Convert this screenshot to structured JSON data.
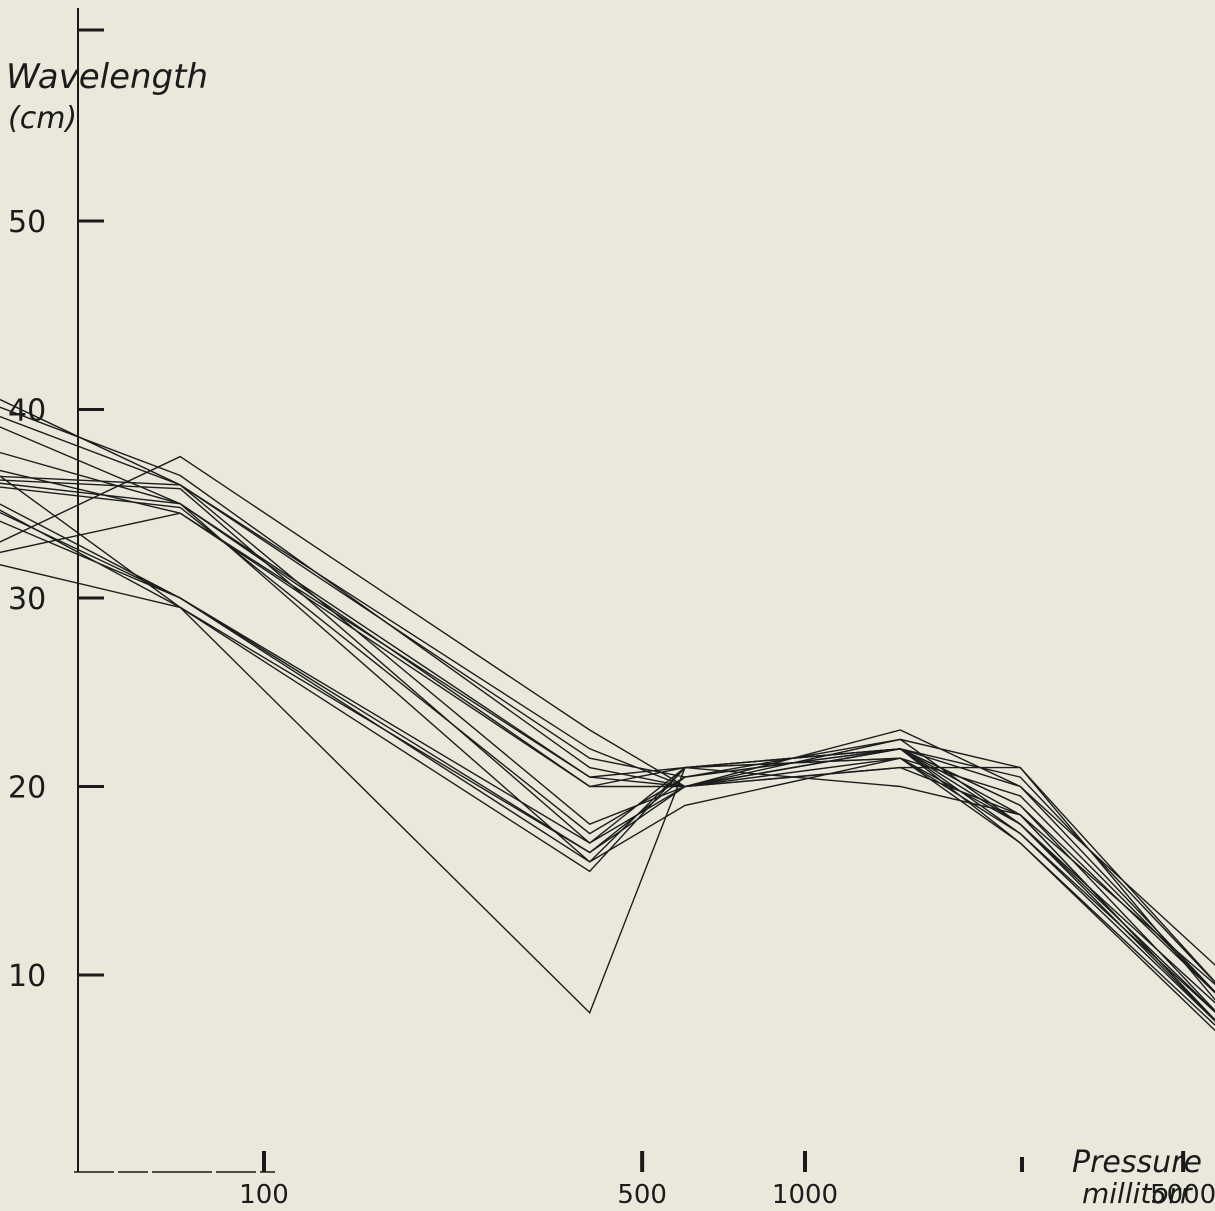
{
  "chart_data": {
    "type": "line",
    "title": "",
    "ylabel_line1": "Wavelength",
    "ylabel_line2": "(cm)",
    "xlabel_line1": "Pressure",
    "xlabel_line2": "millitorr",
    "x_scale": "log",
    "ylim": [
      0,
      60
    ],
    "y_ticks": [
      10,
      20,
      30,
      40,
      50
    ],
    "x_tick_labels": [
      "100",
      "500",
      "1000",
      "5000"
    ],
    "x": [
      30,
      70,
      400,
      600,
      1500,
      2500,
      6000
    ],
    "series": [
      {
        "values": [
          41,
          36,
          22,
          20,
          21,
          21,
          8
        ]
      },
      {
        "values": [
          40.5,
          36.5,
          21,
          20,
          22,
          20,
          8.5
        ]
      },
      {
        "values": [
          40,
          36,
          21.5,
          20.5,
          22,
          20.5,
          9
        ]
      },
      {
        "values": [
          39.5,
          35,
          20.5,
          21,
          21.5,
          19.5,
          8.5
        ]
      },
      {
        "values": [
          38,
          35,
          20,
          20,
          22,
          19,
          7.5
        ]
      },
      {
        "values": [
          37,
          34.5,
          20,
          21,
          22,
          18.5,
          7
        ]
      },
      {
        "values": [
          36.5,
          36,
          18,
          20,
          22,
          18,
          7
        ]
      },
      {
        "values": [
          36.3,
          35.8,
          17,
          20,
          21.5,
          17.5,
          7.5
        ]
      },
      {
        "values": [
          36.2,
          35,
          16,
          19,
          21.5,
          17,
          6.8
        ]
      },
      {
        "values": [
          36,
          34.8,
          17.5,
          20.5,
          22.5,
          18,
          8
        ]
      },
      {
        "values": [
          35.5,
          30,
          17,
          21,
          22,
          19,
          8.5
        ]
      },
      {
        "values": [
          35.2,
          29.5,
          16.5,
          20,
          21,
          18.5,
          7
        ]
      },
      {
        "values": [
          35,
          30,
          16,
          21,
          22,
          17,
          6.5
        ]
      },
      {
        "values": [
          34.5,
          30,
          16.5,
          20.5,
          22,
          17.5,
          7
        ]
      },
      {
        "values": [
          32.5,
          37.5,
          23,
          20,
          22.5,
          21,
          9
        ]
      },
      {
        "values": [
          32.2,
          34.5,
          20.5,
          20,
          23,
          20,
          10
        ]
      },
      {
        "values": [
          32,
          29.5,
          8,
          21,
          21.5,
          18,
          7.5
        ]
      },
      {
        "values": [
          37.2,
          29.5,
          15.5,
          21,
          20,
          18.5,
          9
        ]
      }
    ]
  }
}
